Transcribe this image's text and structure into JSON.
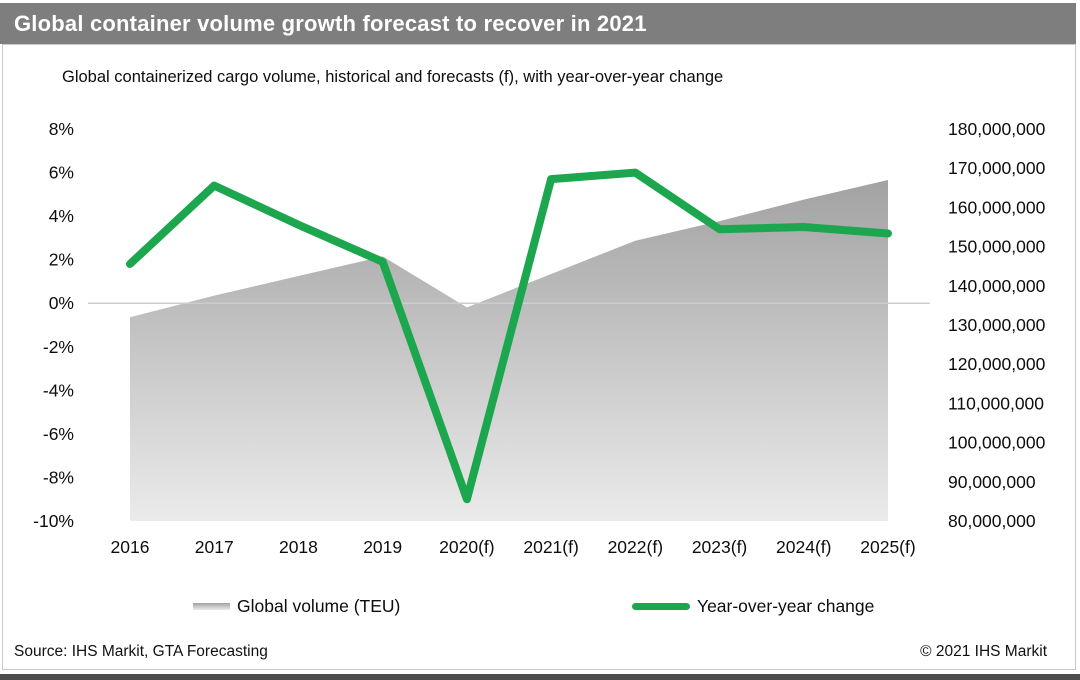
{
  "footer": {
    "source": "Source: IHS Markit, GTA Forecasting",
    "copyright": "© 2021 IHS Markit"
  },
  "colors": {
    "header_bg": "#7e7e7e",
    "line_green": "#1ca64e",
    "area_top": "#a2a2a2",
    "area_bottom": "#ebebeb",
    "zero_line": "#cccccc",
    "bottom_strip": "#4c4c4c",
    "text": "#0d0d0d"
  },
  "chart_data": {
    "type": "area+line combo",
    "title": "Global container volume growth forecast to recover in 2021",
    "subtitle": "Global containerized cargo volume, historical and forecasts (f), with year-over-year change",
    "categories": [
      "2016",
      "2017",
      "2018",
      "2019",
      "2020(f)",
      "2021(f)",
      "2022(f)",
      "2023(f)",
      "2024(f)",
      "2025(f)"
    ],
    "series": [
      {
        "name": "Global volume (TEU)",
        "type": "area",
        "axis": "right",
        "values": [
          132000000,
          137500000,
          142500000,
          147500000,
          134500000,
          143000000,
          151500000,
          156500000,
          162000000,
          167000000
        ]
      },
      {
        "name": "Year-over-year change",
        "type": "line",
        "axis": "left",
        "unit": "%",
        "values": [
          1.8,
          5.4,
          3.6,
          1.9,
          -9.0,
          5.7,
          6.0,
          3.4,
          3.5,
          3.2
        ]
      }
    ],
    "left_axis": {
      "unit": "%",
      "max": 8,
      "min": -10,
      "step": 2,
      "ticks": [
        {
          "v": 8,
          "label": "8%"
        },
        {
          "v": 6,
          "label": "6%"
        },
        {
          "v": 4,
          "label": "4%"
        },
        {
          "v": 2,
          "label": "2%"
        },
        {
          "v": 0,
          "label": "0%"
        },
        {
          "v": -2,
          "label": "-2%"
        },
        {
          "v": -4,
          "label": "-4%"
        },
        {
          "v": -6,
          "label": "-6%"
        },
        {
          "v": -8,
          "label": "-8%"
        },
        {
          "v": -10,
          "label": "-10%"
        }
      ]
    },
    "right_axis": {
      "unit": "TEU",
      "max": 180000000,
      "min": 80000000,
      "step": 10000000,
      "ticks": [
        {
          "v": 180000000,
          "label": "180,000,000"
        },
        {
          "v": 170000000,
          "label": "170,000,000"
        },
        {
          "v": 160000000,
          "label": "160,000,000"
        },
        {
          "v": 150000000,
          "label": "150,000,000"
        },
        {
          "v": 140000000,
          "label": "140,000,000"
        },
        {
          "v": 130000000,
          "label": "130,000,000"
        },
        {
          "v": 120000000,
          "label": "120,000,000"
        },
        {
          "v": 110000000,
          "label": "110,000,000"
        },
        {
          "v": 100000000,
          "label": "100,000,000"
        },
        {
          "v": 90000000,
          "label": "90,000,000"
        },
        {
          "v": 80000000,
          "label": "80,000,000"
        }
      ]
    },
    "grid": "horizontal zero line only",
    "legend_position": "bottom"
  }
}
